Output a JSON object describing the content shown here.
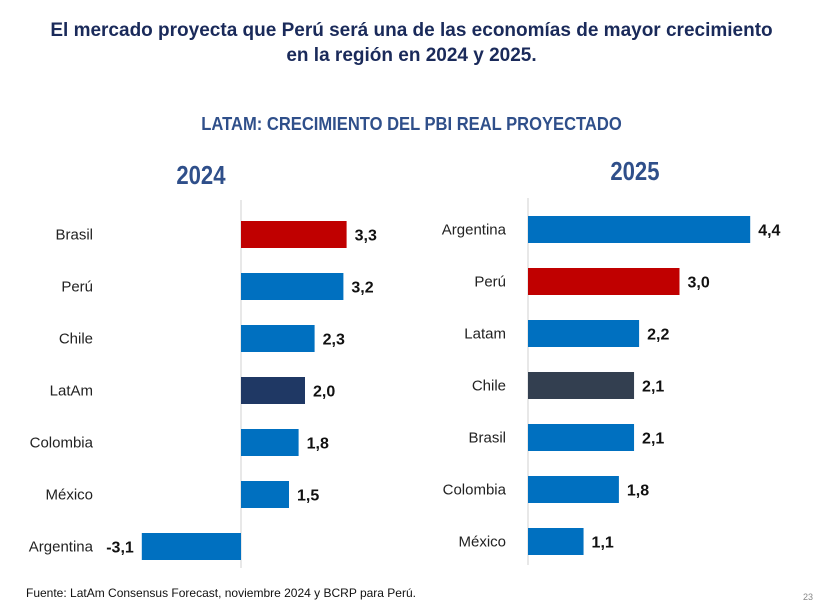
{
  "headline": {
    "line1": "El mercado proyecta que Perú será una de las economías de mayor crecimiento",
    "line2": "en la región en 2024 y 2025."
  },
  "subtitle": "LATAM: CRECIMIENTO DEL PBI REAL PROYECTADO",
  "footer": {
    "source": "Fuente: LatAm Consensus Forecast, noviembre 2024 y BCRP para Perú.",
    "page_number": "23"
  },
  "colors": {
    "highlight": "#c00000",
    "default": "#0070c0",
    "latam_2024": "#1f3864",
    "chile_2025": "#333f50"
  },
  "chart_data": [
    {
      "type": "bar",
      "orientation": "horizontal",
      "title": "2024",
      "categories": [
        "Brasil",
        "Perú",
        "Chile",
        "LatAm",
        "Colombia",
        "México",
        "Argentina"
      ],
      "values": [
        3.3,
        3.2,
        2.3,
        2.0,
        1.8,
        1.5,
        -3.1
      ],
      "labels": [
        "3,3",
        "3,2",
        "2,3",
        "2,0",
        "1,8",
        "1,5",
        "-3,1"
      ],
      "bar_colors": [
        "#c00000",
        "#0070c0",
        "#0070c0",
        "#1f3864",
        "#0070c0",
        "#0070c0",
        "#0070c0"
      ],
      "xlabel": "",
      "ylabel": "",
      "grid": false
    },
    {
      "type": "bar",
      "orientation": "horizontal",
      "title": "2025",
      "categories": [
        "Argentina",
        "Perú",
        "Latam",
        "Chile",
        "Brasil",
        "Colombia",
        "México"
      ],
      "values": [
        4.4,
        3.0,
        2.2,
        2.1,
        2.1,
        1.8,
        1.1
      ],
      "labels": [
        "4,4",
        "3,0",
        "2,2",
        "2,1",
        "2,1",
        "1,8",
        "1,1"
      ],
      "bar_colors": [
        "#0070c0",
        "#c00000",
        "#0070c0",
        "#333f50",
        "#0070c0",
        "#0070c0",
        "#0070c0"
      ],
      "xlabel": "",
      "ylabel": "",
      "grid": false
    }
  ]
}
